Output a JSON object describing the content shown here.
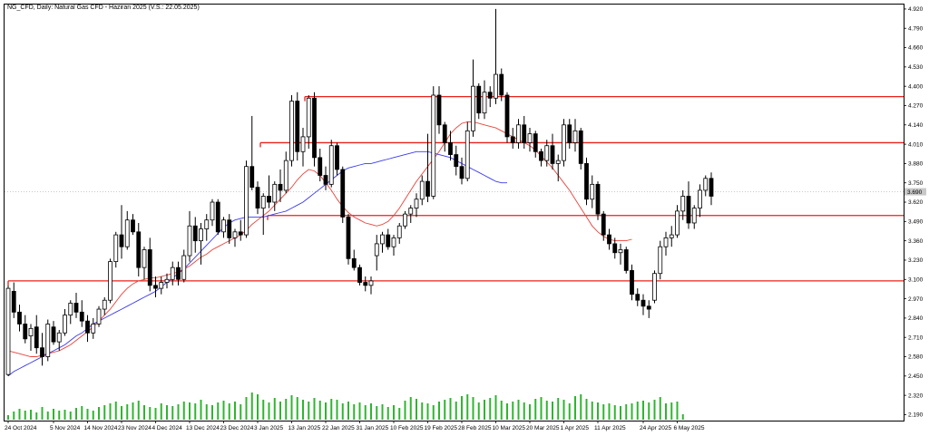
{
  "window": {
    "title": "NG_CFD, Daily:  Natural Gas CFD - Haziran 2025 (V.S.: 22.05.2025)"
  },
  "colors": {
    "bull_candle": "#ffffff",
    "bear_candle": "#000000",
    "ma_fast": "#e8433b",
    "ma_slow": "#3a3ae8",
    "level_line": "#e8201a",
    "volume": "#2fb52f",
    "current_price_line": "#c0c0c0"
  },
  "chart_data": {
    "type": "candlestick",
    "title": "NG_CFD, Daily:  Natural Gas CFD - Haziran 2025 (V.S.: 22.05.2025)",
    "ylim": [
      2.15,
      4.95
    ],
    "y_ticks": [
      "4.920",
      "4.790",
      "4.660",
      "4.530",
      "4.400",
      "4.270",
      "4.140",
      "4.010",
      "3.880",
      "3.750",
      "3.620",
      "3.490",
      "3.360",
      "3.230",
      "3.100",
      "2.970",
      "2.840",
      "2.710",
      "2.580",
      "2.450",
      "2.320",
      "2.190"
    ],
    "current_price": 3.69,
    "current_price_label": "3.690",
    "x_labels": [
      "24 Oct 2024",
      "5 Nov 2024",
      "14 Nov 2024",
      "23 Nov 2024",
      "4 Dec 2024",
      "13 Dec 2024",
      "23 Dec 2024",
      "3 Jan 2025",
      "13 Jan 2025",
      "22 Jan 2025",
      "31 Jan 2025",
      "10 Feb 2025",
      "19 Feb 2025",
      "28 Feb 2025",
      "10 Mar 2025",
      "20 Mar 2025",
      "1 Apr 2025",
      "11 Apr 2025",
      "24 Apr 2025",
      "6 May 2025"
    ],
    "x_label_index": [
      0,
      8,
      14,
      20,
      26,
      32,
      38,
      44,
      50,
      56,
      62,
      68,
      74,
      80,
      86,
      92,
      98,
      104,
      112,
      118
    ],
    "horizontal_levels": [
      4.33,
      4.02,
      3.53,
      3.09
    ],
    "ohlc": [
      [
        2.46,
        3.06,
        2.45,
        3.04
      ],
      [
        3.02,
        3.08,
        2.84,
        2.88
      ],
      [
        2.88,
        2.93,
        2.75,
        2.8
      ],
      [
        2.8,
        2.86,
        2.67,
        2.7
      ],
      [
        2.72,
        2.8,
        2.62,
        2.77
      ],
      [
        2.78,
        2.86,
        2.6,
        2.64
      ],
      [
        2.64,
        2.74,
        2.52,
        2.58
      ],
      [
        2.58,
        2.83,
        2.55,
        2.8
      ],
      [
        2.78,
        2.82,
        2.66,
        2.68
      ],
      [
        2.68,
        2.76,
        2.62,
        2.74
      ],
      [
        2.74,
        2.9,
        2.72,
        2.86
      ],
      [
        2.86,
        2.96,
        2.8,
        2.94
      ],
      [
        2.94,
        3.01,
        2.84,
        2.88
      ],
      [
        2.88,
        2.96,
        2.78,
        2.82
      ],
      [
        2.82,
        2.86,
        2.68,
        2.74
      ],
      [
        2.74,
        2.84,
        2.7,
        2.8
      ],
      [
        2.8,
        2.92,
        2.78,
        2.9
      ],
      [
        2.9,
        2.98,
        2.86,
        2.96
      ],
      [
        2.96,
        3.24,
        2.94,
        3.22
      ],
      [
        3.22,
        3.42,
        3.18,
        3.4
      ],
      [
        3.4,
        3.6,
        3.24,
        3.32
      ],
      [
        3.32,
        3.56,
        3.3,
        3.5
      ],
      [
        3.5,
        3.54,
        3.4,
        3.42
      ],
      [
        3.42,
        3.48,
        3.12,
        3.18
      ],
      [
        3.18,
        3.32,
        3.1,
        3.3
      ],
      [
        3.3,
        3.38,
        3.02,
        3.06
      ],
      [
        3.06,
        3.12,
        2.98,
        3.04
      ],
      [
        3.04,
        3.12,
        3.0,
        3.08
      ],
      [
        3.08,
        3.14,
        3.04,
        3.1
      ],
      [
        3.1,
        3.22,
        3.06,
        3.18
      ],
      [
        3.18,
        3.22,
        3.06,
        3.1
      ],
      [
        3.1,
        3.3,
        3.08,
        3.26
      ],
      [
        3.26,
        3.56,
        3.22,
        3.46
      ],
      [
        3.46,
        3.52,
        3.28,
        3.36
      ],
      [
        3.36,
        3.48,
        3.2,
        3.44
      ],
      [
        3.44,
        3.54,
        3.36,
        3.5
      ],
      [
        3.5,
        3.64,
        3.46,
        3.62
      ],
      [
        3.62,
        3.64,
        3.4,
        3.42
      ],
      [
        3.42,
        3.52,
        3.38,
        3.5
      ],
      [
        3.5,
        3.54,
        3.34,
        3.38
      ],
      [
        3.38,
        3.44,
        3.32,
        3.42
      ],
      [
        3.42,
        3.5,
        3.36,
        3.4
      ],
      [
        3.4,
        3.9,
        3.38,
        3.86
      ],
      [
        3.86,
        4.2,
        3.7,
        3.72
      ],
      [
        3.72,
        3.76,
        3.54,
        3.58
      ],
      [
        3.58,
        3.68,
        3.4,
        3.66
      ],
      [
        3.66,
        3.8,
        3.58,
        3.62
      ],
      [
        3.62,
        3.76,
        3.56,
        3.74
      ],
      [
        3.74,
        3.84,
        3.62,
        3.7
      ],
      [
        3.7,
        3.96,
        3.68,
        3.9
      ],
      [
        3.9,
        4.34,
        3.86,
        4.3
      ],
      [
        4.3,
        4.36,
        3.9,
        3.96
      ],
      [
        3.96,
        4.12,
        3.86,
        4.06
      ],
      [
        4.06,
        4.34,
        3.98,
        4.32
      ],
      [
        4.32,
        4.36,
        3.86,
        3.92
      ],
      [
        3.92,
        3.98,
        3.76,
        3.8
      ],
      [
        3.8,
        3.86,
        3.7,
        3.74
      ],
      [
        3.74,
        4.04,
        3.72,
        4.0
      ],
      [
        4.0,
        4.02,
        3.8,
        3.84
      ],
      [
        3.84,
        3.86,
        3.48,
        3.52
      ],
      [
        3.52,
        3.54,
        3.2,
        3.24
      ],
      [
        3.24,
        3.3,
        3.16,
        3.18
      ],
      [
        3.18,
        3.2,
        3.06,
        3.08
      ],
      [
        3.08,
        3.12,
        3.02,
        3.06
      ],
      [
        3.06,
        3.12,
        3.0,
        3.09
      ],
      [
        3.26,
        3.4,
        3.16,
        3.34
      ],
      [
        3.34,
        3.42,
        3.28,
        3.4
      ],
      [
        3.4,
        3.44,
        3.3,
        3.32
      ],
      [
        3.32,
        3.4,
        3.26,
        3.38
      ],
      [
        3.38,
        3.48,
        3.34,
        3.46
      ],
      [
        3.46,
        3.56,
        3.44,
        3.54
      ],
      [
        3.54,
        3.6,
        3.48,
        3.58
      ],
      [
        3.58,
        3.68,
        3.52,
        3.64
      ],
      [
        3.64,
        3.8,
        3.6,
        3.76
      ],
      [
        3.76,
        4.08,
        3.62,
        3.66
      ],
      [
        3.66,
        4.4,
        3.64,
        4.34
      ],
      [
        4.34,
        4.4,
        4.08,
        4.14
      ],
      [
        4.14,
        4.16,
        3.96,
        4.02
      ],
      [
        4.02,
        4.1,
        3.9,
        3.94
      ],
      [
        3.94,
        4.0,
        3.8,
        3.86
      ],
      [
        3.86,
        3.92,
        3.74,
        3.78
      ],
      [
        3.78,
        4.16,
        3.76,
        4.1
      ],
      [
        4.1,
        4.58,
        4.06,
        4.4
      ],
      [
        4.4,
        4.42,
        4.18,
        4.22
      ],
      [
        4.22,
        4.44,
        4.18,
        4.36
      ],
      [
        4.36,
        4.4,
        4.26,
        4.32
      ],
      [
        4.32,
        4.92,
        4.28,
        4.48
      ],
      [
        4.48,
        4.52,
        4.3,
        4.34
      ],
      [
        4.34,
        4.36,
        4.02,
        4.06
      ],
      [
        4.06,
        4.12,
        3.98,
        4.02
      ],
      [
        4.02,
        4.18,
        3.98,
        4.14
      ],
      [
        4.14,
        4.2,
        3.98,
        4.02
      ],
      [
        4.02,
        4.12,
        3.96,
        4.08
      ],
      [
        4.08,
        4.1,
        3.92,
        3.96
      ],
      [
        3.96,
        3.98,
        3.86,
        3.9
      ],
      [
        3.9,
        4.04,
        3.86,
        4.0
      ],
      [
        4.0,
        4.08,
        3.84,
        3.88
      ],
      [
        3.88,
        3.94,
        3.76,
        3.9
      ],
      [
        3.9,
        4.18,
        3.86,
        4.14
      ],
      [
        4.14,
        4.18,
        3.98,
        4.02
      ],
      [
        4.02,
        4.18,
        3.96,
        4.1
      ],
      [
        4.1,
        4.12,
        3.84,
        3.88
      ],
      [
        3.88,
        3.92,
        3.6,
        3.64
      ],
      [
        3.64,
        3.8,
        3.58,
        3.74
      ],
      [
        3.74,
        3.76,
        3.5,
        3.54
      ],
      [
        3.54,
        3.56,
        3.36,
        3.4
      ],
      [
        3.4,
        3.44,
        3.3,
        3.34
      ],
      [
        3.34,
        3.38,
        3.24,
        3.28
      ],
      [
        3.28,
        3.34,
        3.2,
        3.3
      ],
      [
        3.3,
        3.32,
        3.14,
        3.16
      ],
      [
        3.16,
        3.2,
        2.96,
        3.0
      ],
      [
        3.0,
        3.04,
        2.92,
        2.96
      ],
      [
        2.96,
        3.0,
        2.86,
        2.92
      ],
      [
        2.92,
        2.96,
        2.84,
        2.9
      ],
      [
        2.96,
        3.16,
        2.94,
        3.14
      ],
      [
        3.14,
        3.36,
        3.1,
        3.32
      ],
      [
        3.32,
        3.42,
        3.26,
        3.38
      ],
      [
        3.38,
        3.46,
        3.32,
        3.4
      ],
      [
        3.4,
        3.6,
        3.38,
        3.56
      ],
      [
        3.56,
        3.7,
        3.5,
        3.66
      ],
      [
        3.66,
        3.76,
        3.44,
        3.48
      ],
      [
        3.48,
        3.6,
        3.44,
        3.58
      ],
      [
        3.58,
        3.74,
        3.52,
        3.7
      ],
      [
        3.7,
        3.8,
        3.66,
        3.78
      ],
      [
        3.78,
        3.82,
        3.6,
        3.66
      ]
    ],
    "ma_fast": [
      2.62,
      2.61,
      2.6,
      2.59,
      2.58,
      2.58,
      2.59,
      2.6,
      2.61,
      2.62,
      2.64,
      2.66,
      2.69,
      2.72,
      2.75,
      2.78,
      2.82,
      2.86,
      2.9,
      2.95,
      3.0,
      3.04,
      3.07,
      3.09,
      3.1,
      3.11,
      3.11,
      3.12,
      3.13,
      3.14,
      3.15,
      3.17,
      3.19,
      3.22,
      3.25,
      3.27,
      3.3,
      3.32,
      3.34,
      3.36,
      3.38,
      3.4,
      3.43,
      3.47,
      3.5,
      3.53,
      3.56,
      3.6,
      3.64,
      3.68,
      3.72,
      3.77,
      3.81,
      3.84,
      3.83,
      3.8,
      3.75,
      3.7,
      3.64,
      3.59,
      3.55,
      3.52,
      3.5,
      3.48,
      3.47,
      3.46,
      3.47,
      3.49,
      3.53,
      3.58,
      3.64,
      3.7,
      3.76,
      3.81,
      3.86,
      3.91,
      3.96,
      4.02,
      4.08,
      4.12,
      4.15,
      4.16,
      4.16,
      4.15,
      4.14,
      4.13,
      4.12,
      4.1,
      4.08,
      4.06,
      4.04,
      4.02,
      4.0,
      3.97,
      3.93,
      3.89,
      3.85,
      3.8,
      3.75,
      3.7,
      3.64,
      3.58,
      3.52,
      3.46,
      3.42,
      3.39,
      3.37,
      3.36,
      3.36,
      3.36,
      3.37
    ],
    "ma_slow": [
      2.45,
      2.48,
      2.5,
      2.52,
      2.54,
      2.56,
      2.58,
      2.6,
      2.62,
      2.64,
      2.66,
      2.69,
      2.72,
      2.74,
      2.77,
      2.8,
      2.82,
      2.84,
      2.86,
      2.88,
      2.9,
      2.92,
      2.94,
      2.96,
      2.98,
      3.0,
      3.02,
      3.05,
      3.08,
      3.11,
      3.14,
      3.17,
      3.21,
      3.25,
      3.29,
      3.33,
      3.37,
      3.41,
      3.45,
      3.48,
      3.5,
      3.51,
      3.52,
      3.52,
      3.52,
      3.52,
      3.53,
      3.54,
      3.55,
      3.56,
      3.58,
      3.6,
      3.62,
      3.65,
      3.68,
      3.71,
      3.74,
      3.77,
      3.8,
      3.83,
      3.85,
      3.86,
      3.87,
      3.88,
      3.88,
      3.89,
      3.9,
      3.91,
      3.92,
      3.93,
      3.94,
      3.95,
      3.96,
      3.96,
      3.96,
      3.95,
      3.94,
      3.93,
      3.92,
      3.9,
      3.88,
      3.86,
      3.84,
      3.82,
      3.8,
      3.78,
      3.76,
      3.75,
      3.75
    ],
    "volume": [
      5,
      9,
      12,
      10,
      11,
      8,
      14,
      9,
      12,
      10,
      11,
      9,
      13,
      15,
      12,
      10,
      14,
      16,
      18,
      20,
      15,
      17,
      19,
      21,
      16,
      14,
      13,
      18,
      16,
      15,
      17,
      20,
      19,
      18,
      22,
      17,
      16,
      19,
      21,
      18,
      20,
      17,
      25,
      30,
      28,
      22,
      19,
      24,
      20,
      23,
      27,
      25,
      22,
      20,
      24,
      21,
      19,
      23,
      22,
      18,
      20,
      17,
      19,
      16,
      18,
      15,
      17,
      14,
      16,
      13,
      21,
      25,
      23,
      19,
      18,
      16,
      20,
      22,
      24,
      20,
      26,
      28,
      25,
      19,
      22,
      24,
      27,
      21,
      18,
      20,
      22,
      19,
      17,
      23,
      25,
      21,
      20,
      24,
      22,
      18,
      26,
      28,
      23,
      20,
      19,
      17,
      18,
      16,
      15,
      17,
      18,
      20,
      21,
      19,
      22,
      25,
      18,
      19,
      20,
      6
    ]
  }
}
